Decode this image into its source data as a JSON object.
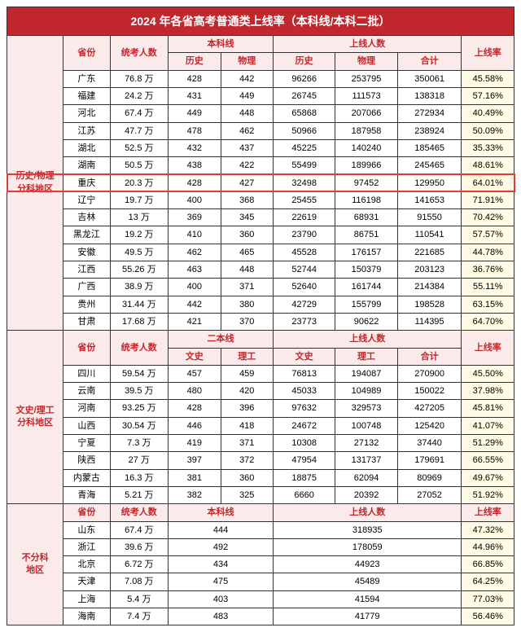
{
  "title": "2024 年各省高考普通类上线率（本科线/本科二批）",
  "colors": {
    "title_bg": "#c2272d",
    "title_text": "#ffffff",
    "header_bg": "#fbeaea",
    "header_text": "#c2272d",
    "rate_bg": "#fffbe5",
    "highlight_border": "#e53935",
    "cell_border": "#333333"
  },
  "sections": [
    {
      "region": "历史/物理\n分科地区",
      "headers": {
        "province": "省份",
        "exam_count": "统考人数",
        "score_group": "本科线",
        "score_sub1": "历史",
        "score_sub2": "物理",
        "pass_group": "上线人数",
        "pass_sub1": "历史",
        "pass_sub2": "物理",
        "pass_sub3": "合计",
        "rate": "上线率"
      },
      "rows": [
        {
          "p": "广东",
          "n": "76.8 万",
          "s1": "428",
          "s2": "442",
          "c1": "96266",
          "c2": "253795",
          "c3": "350061",
          "r": "45.58%",
          "hl": false
        },
        {
          "p": "福建",
          "n": "24.2 万",
          "s1": "431",
          "s2": "449",
          "c1": "26745",
          "c2": "111573",
          "c3": "138318",
          "r": "57.16%",
          "hl": false
        },
        {
          "p": "河北",
          "n": "67.4 万",
          "s1": "449",
          "s2": "448",
          "c1": "65868",
          "c2": "207066",
          "c3": "272934",
          "r": "40.49%",
          "hl": false
        },
        {
          "p": "江苏",
          "n": "47.7 万",
          "s1": "478",
          "s2": "462",
          "c1": "50966",
          "c2": "187958",
          "c3": "238924",
          "r": "50.09%",
          "hl": false
        },
        {
          "p": "湖北",
          "n": "52.5 万",
          "s1": "432",
          "s2": "437",
          "c1": "45225",
          "c2": "140240",
          "c3": "185465",
          "r": "35.33%",
          "hl": false
        },
        {
          "p": "湖南",
          "n": "50.5 万",
          "s1": "438",
          "s2": "422",
          "c1": "55499",
          "c2": "189966",
          "c3": "245465",
          "r": "48.61%",
          "hl": false
        },
        {
          "p": "重庆",
          "n": "20.3 万",
          "s1": "428",
          "s2": "427",
          "c1": "32498",
          "c2": "97452",
          "c3": "129950",
          "r": "64.01%",
          "hl": true
        },
        {
          "p": "辽宁",
          "n": "19.7 万",
          "s1": "400",
          "s2": "368",
          "c1": "25455",
          "c2": "116198",
          "c3": "141653",
          "r": "71.91%",
          "hl": false
        },
        {
          "p": "吉林",
          "n": "13 万",
          "s1": "369",
          "s2": "345",
          "c1": "22619",
          "c2": "68931",
          "c3": "91550",
          "r": "70.42%",
          "hl": false
        },
        {
          "p": "黑龙江",
          "n": "19.2 万",
          "s1": "410",
          "s2": "360",
          "c1": "23790",
          "c2": "86751",
          "c3": "110541",
          "r": "57.57%",
          "hl": false
        },
        {
          "p": "安徽",
          "n": "49.5 万",
          "s1": "462",
          "s2": "465",
          "c1": "45528",
          "c2": "176157",
          "c3": "221685",
          "r": "44.78%",
          "hl": false
        },
        {
          "p": "江西",
          "n": "55.26 万",
          "s1": "463",
          "s2": "448",
          "c1": "52744",
          "c2": "150379",
          "c3": "203123",
          "r": "36.76%",
          "hl": false
        },
        {
          "p": "广西",
          "n": "38.9 万",
          "s1": "400",
          "s2": "371",
          "c1": "52640",
          "c2": "161744",
          "c3": "214384",
          "r": "55.11%",
          "hl": false
        },
        {
          "p": "贵州",
          "n": "31.44 万",
          "s1": "442",
          "s2": "380",
          "c1": "42729",
          "c2": "155799",
          "c3": "198528",
          "r": "63.15%",
          "hl": false
        },
        {
          "p": "甘肃",
          "n": "17.68 万",
          "s1": "421",
          "s2": "370",
          "c1": "23773",
          "c2": "90622",
          "c3": "114395",
          "r": "64.70%",
          "hl": false
        }
      ]
    },
    {
      "region": "文史/理工\n分科地区",
      "headers": {
        "province": "省份",
        "exam_count": "统考人数",
        "score_group": "二本线",
        "score_sub1": "文史",
        "score_sub2": "理工",
        "pass_group": "上线人数",
        "pass_sub1": "文史",
        "pass_sub2": "理工",
        "pass_sub3": "合计",
        "rate": "上线率"
      },
      "rows": [
        {
          "p": "四川",
          "n": "59.54 万",
          "s1": "457",
          "s2": "459",
          "c1": "76813",
          "c2": "194087",
          "c3": "270900",
          "r": "45.50%",
          "hl": false
        },
        {
          "p": "云南",
          "n": "39.5 万",
          "s1": "480",
          "s2": "420",
          "c1": "45033",
          "c2": "104989",
          "c3": "150022",
          "r": "37.98%",
          "hl": false
        },
        {
          "p": "河南",
          "n": "93.25 万",
          "s1": "428",
          "s2": "396",
          "c1": "97632",
          "c2": "329573",
          "c3": "427205",
          "r": "45.81%",
          "hl": false
        },
        {
          "p": "山西",
          "n": "30.54 万",
          "s1": "446",
          "s2": "418",
          "c1": "24672",
          "c2": "100748",
          "c3": "125420",
          "r": "41.07%",
          "hl": false
        },
        {
          "p": "宁夏",
          "n": "7.3 万",
          "s1": "419",
          "s2": "371",
          "c1": "10308",
          "c2": "27132",
          "c3": "37440",
          "r": "51.29%",
          "hl": false
        },
        {
          "p": "陕西",
          "n": "27 万",
          "s1": "397",
          "s2": "372",
          "c1": "47954",
          "c2": "131737",
          "c3": "179691",
          "r": "66.55%",
          "hl": false
        },
        {
          "p": "内蒙古",
          "n": "16.3 万",
          "s1": "381",
          "s2": "360",
          "c1": "18875",
          "c2": "62094",
          "c3": "80969",
          "r": "49.67%",
          "hl": false
        },
        {
          "p": "青海",
          "n": "5.21 万",
          "s1": "382",
          "s2": "325",
          "c1": "6660",
          "c2": "20392",
          "c3": "27052",
          "r": "51.92%",
          "hl": false
        }
      ]
    },
    {
      "region": "不分科\n地区",
      "headers": {
        "province": "省份",
        "exam_count": "统考人数",
        "score_group": "本科线",
        "pass_group": "上线人数",
        "rate": "上线率"
      },
      "rows": [
        {
          "p": "山东",
          "n": "67.4 万",
          "s": "444",
          "c": "318935",
          "r": "47.32%",
          "hl": false
        },
        {
          "p": "浙江",
          "n": "39.6 万",
          "s": "492",
          "c": "178059",
          "r": "44.96%",
          "hl": false
        },
        {
          "p": "北京",
          "n": "6.72 万",
          "s": "434",
          "c": "44923",
          "r": "66.85%",
          "hl": false
        },
        {
          "p": "天津",
          "n": "7.08 万",
          "s": "475",
          "c": "45489",
          "r": "64.25%",
          "hl": false
        },
        {
          "p": "上海",
          "n": "5.4 万",
          "s": "403",
          "c": "41594",
          "r": "77.03%",
          "hl": false
        },
        {
          "p": "海南",
          "n": "7.4 万",
          "s": "483",
          "c": "41779",
          "r": "56.46%",
          "hl": false
        }
      ]
    }
  ]
}
